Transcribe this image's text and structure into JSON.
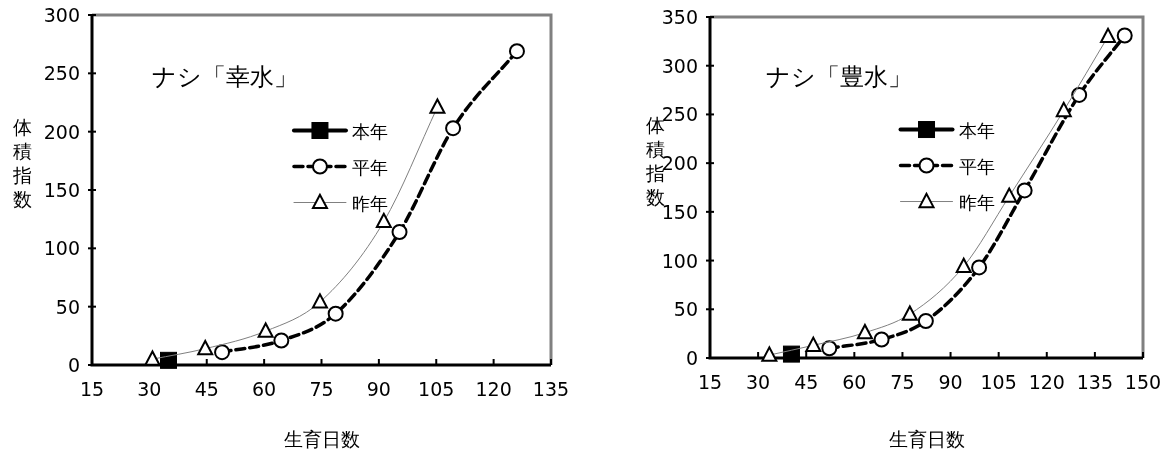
{
  "chart_data": [
    {
      "type": "line",
      "title": "ナシ「幸水」",
      "xlabel": "生育日数",
      "ylabel": "体積指数",
      "xlim": [
        15,
        135
      ],
      "xticks": [
        15,
        30,
        45,
        60,
        75,
        90,
        105,
        120,
        135
      ],
      "ylim": [
        0,
        300
      ],
      "yticks": [
        0,
        50,
        100,
        150,
        200,
        250,
        300
      ],
      "grid": false,
      "legend": "top",
      "series": [
        {
          "name": "本年",
          "color": "#000000",
          "marker": "square",
          "line_style": "solid",
          "x": [
            35
          ],
          "values": [
            4
          ]
        },
        {
          "name": "平年",
          "color": "#000000",
          "marker": "circle",
          "line_style": "dashed",
          "x": [
            49,
            64.5,
            78.7,
            95.4,
            109.4,
            126.1
          ],
          "values": [
            11,
            21,
            44,
            114,
            203,
            269
          ]
        },
        {
          "name": "昨年",
          "color": "#808080",
          "marker": "triangle",
          "line_style": "solid",
          "x": [
            30.8,
            44.6,
            60.4,
            74.6,
            91.3,
            105.3
          ],
          "values": [
            5,
            14,
            29,
            54,
            123,
            221
          ]
        }
      ]
    },
    {
      "type": "line",
      "title": "ナシ「豊水」",
      "xlabel": "生育日数",
      "ylabel": "体積指数",
      "xlim": [
        15,
        150
      ],
      "xticks": [
        15,
        30,
        45,
        60,
        75,
        90,
        105,
        120,
        135,
        150
      ],
      "ylim": [
        0,
        350
      ],
      "yticks": [
        0,
        50,
        100,
        150,
        200,
        250,
        300,
        350
      ],
      "grid": false,
      "legend": "top",
      "series": [
        {
          "name": "本年",
          "color": "#000000",
          "marker": "square",
          "line_style": "solid",
          "x": [
            40.4
          ],
          "values": [
            4
          ]
        },
        {
          "name": "平年",
          "color": "#000000",
          "marker": "circle",
          "line_style": "dashed",
          "x": [
            52.2,
            68.5,
            82.3,
            98.9,
            113.1,
            130.1,
            144.3
          ],
          "values": [
            10,
            19,
            38,
            93,
            172,
            270,
            331
          ]
        },
        {
          "name": "昨年",
          "color": "#808080",
          "marker": "triangle",
          "line_style": "solid",
          "x": [
            33.5,
            47.2,
            63.3,
            77.3,
            94.1,
            108.3,
            125.3,
            139.1
          ],
          "values": [
            3,
            13,
            26,
            45,
            94,
            166,
            254,
            330
          ]
        }
      ]
    }
  ]
}
